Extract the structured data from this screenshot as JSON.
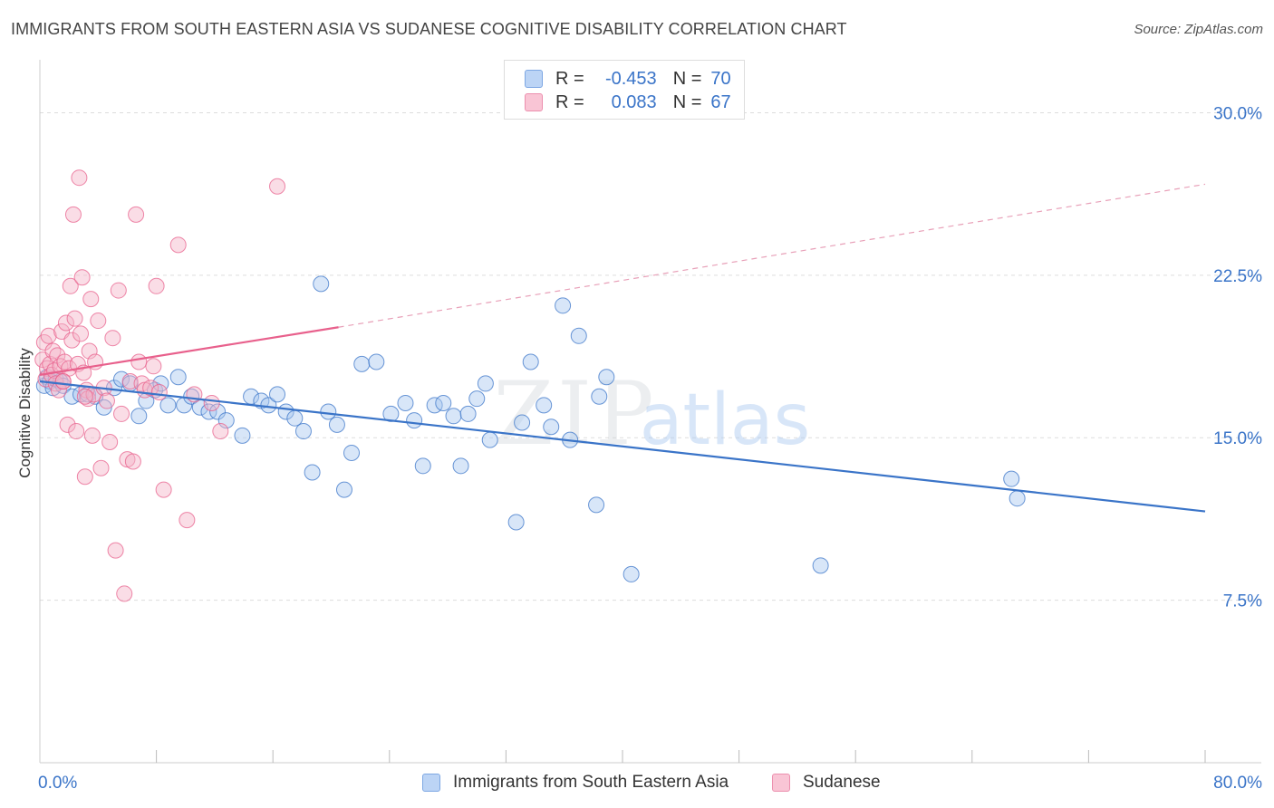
{
  "title": "IMMIGRANTS FROM SOUTH EASTERN ASIA VS SUDANESE COGNITIVE DISABILITY CORRELATION CHART",
  "source": "Source: ZipAtlas.com",
  "watermark": {
    "zip": "ZIP",
    "atlas": "atlas"
  },
  "colors": {
    "blue": "#3a74c8",
    "blue_fill": "#a9c7f0",
    "pink": "#e8608c",
    "pink_fill": "#f5b3c8",
    "grid": "#dddddd"
  },
  "legend": {
    "rows": [
      {
        "r_label": "R =",
        "r_value": "-0.453",
        "n_label": "N =",
        "n_value": "70"
      },
      {
        "r_label": "R =",
        "r_value": "0.083",
        "n_label": "N =",
        "n_value": "67"
      }
    ]
  },
  "bottom_legend": [
    "Immigrants from South Eastern Asia",
    "Sudanese"
  ],
  "chart_data": {
    "type": "scatter",
    "title": "IMMIGRANTS FROM SOUTH EASTERN ASIA VS SUDANESE COGNITIVE DISABILITY CORRELATION CHART",
    "xlabel": "",
    "ylabel": "Cognitive Disability",
    "xlim": [
      0,
      80
    ],
    "ylim": [
      0,
      32
    ],
    "x_tick_labels": [
      "0.0%",
      "80.0%"
    ],
    "y_tick_labels": [
      "30.0%",
      "22.5%",
      "15.0%",
      "7.5%"
    ],
    "y_ticks": [
      30.0,
      22.5,
      15.0,
      7.5
    ],
    "grid": true,
    "legend_position": "top-center",
    "series": [
      {
        "name": "Immigrants from South Eastern Asia",
        "color": "#3a74c8",
        "trend": {
          "x": [
            0,
            80
          ],
          "y": [
            17.6,
            11.6
          ],
          "style": "solid"
        },
        "points": [
          [
            0.3,
            17.4
          ],
          [
            0.5,
            17.8
          ],
          [
            0.7,
            17.6
          ],
          [
            0.9,
            17.3
          ],
          [
            1.1,
            17.7
          ],
          [
            1.4,
            17.6
          ],
          [
            1.6,
            17.4
          ],
          [
            2.2,
            16.9
          ],
          [
            2.8,
            17.0
          ],
          [
            3.3,
            17.0
          ],
          [
            3.8,
            16.9
          ],
          [
            4.4,
            16.4
          ],
          [
            5.1,
            17.3
          ],
          [
            5.6,
            17.7
          ],
          [
            6.2,
            17.5
          ],
          [
            6.8,
            16.0
          ],
          [
            7.3,
            16.7
          ],
          [
            7.9,
            17.2
          ],
          [
            8.3,
            17.5
          ],
          [
            8.8,
            16.5
          ],
          [
            9.5,
            17.8
          ],
          [
            9.9,
            16.5
          ],
          [
            10.4,
            16.9
          ],
          [
            11.0,
            16.4
          ],
          [
            11.6,
            16.2
          ],
          [
            12.2,
            16.2
          ],
          [
            12.8,
            15.8
          ],
          [
            13.9,
            15.1
          ],
          [
            14.5,
            16.9
          ],
          [
            15.2,
            16.7
          ],
          [
            15.7,
            16.5
          ],
          [
            16.3,
            17.0
          ],
          [
            16.9,
            16.2
          ],
          [
            17.5,
            15.9
          ],
          [
            18.1,
            15.3
          ],
          [
            18.7,
            13.4
          ],
          [
            19.3,
            22.1
          ],
          [
            19.8,
            16.2
          ],
          [
            20.4,
            15.6
          ],
          [
            20.9,
            12.6
          ],
          [
            21.4,
            14.3
          ],
          [
            22.1,
            18.4
          ],
          [
            23.1,
            18.5
          ],
          [
            24.1,
            16.1
          ],
          [
            25.1,
            16.6
          ],
          [
            25.7,
            15.8
          ],
          [
            26.3,
            13.7
          ],
          [
            27.1,
            16.5
          ],
          [
            27.7,
            16.6
          ],
          [
            28.4,
            16.0
          ],
          [
            28.9,
            13.7
          ],
          [
            29.4,
            16.1
          ],
          [
            30.0,
            16.8
          ],
          [
            30.6,
            17.5
          ],
          [
            30.9,
            14.9
          ],
          [
            32.7,
            11.1
          ],
          [
            33.1,
            15.7
          ],
          [
            33.7,
            18.5
          ],
          [
            34.6,
            16.5
          ],
          [
            35.1,
            15.5
          ],
          [
            35.9,
            21.1
          ],
          [
            36.4,
            14.9
          ],
          [
            37.0,
            19.7
          ],
          [
            38.2,
            11.9
          ],
          [
            38.4,
            16.9
          ],
          [
            38.9,
            17.8
          ],
          [
            40.6,
            8.7
          ],
          [
            53.6,
            9.1
          ],
          [
            66.7,
            13.1
          ],
          [
            67.1,
            12.2
          ]
        ]
      },
      {
        "name": "Sudanese",
        "color": "#e8608c",
        "trend": {
          "x": [
            0,
            20.5
          ],
          "y": [
            17.9,
            20.1
          ],
          "style": "solid"
        },
        "trend_extension": {
          "x": [
            20.5,
            80
          ],
          "y": [
            20.1,
            26.7
          ],
          "style": "dashed"
        },
        "points": [
          [
            0.2,
            18.6
          ],
          [
            0.3,
            19.4
          ],
          [
            0.4,
            17.7
          ],
          [
            0.5,
            18.2
          ],
          [
            0.6,
            19.7
          ],
          [
            0.7,
            18.4
          ],
          [
            0.8,
            17.9
          ],
          [
            0.9,
            19.0
          ],
          [
            1.0,
            18.1
          ],
          [
            1.1,
            17.5
          ],
          [
            1.2,
            18.8
          ],
          [
            1.3,
            17.2
          ],
          [
            1.4,
            18.3
          ],
          [
            1.5,
            19.9
          ],
          [
            1.6,
            17.6
          ],
          [
            1.7,
            18.5
          ],
          [
            1.8,
            20.3
          ],
          [
            1.9,
            15.6
          ],
          [
            2.0,
            18.2
          ],
          [
            2.1,
            22.0
          ],
          [
            2.2,
            19.5
          ],
          [
            2.3,
            25.3
          ],
          [
            2.4,
            20.5
          ],
          [
            2.5,
            15.3
          ],
          [
            2.6,
            18.4
          ],
          [
            2.7,
            27.0
          ],
          [
            2.8,
            19.8
          ],
          [
            2.9,
            22.4
          ],
          [
            3.0,
            18.0
          ],
          [
            3.1,
            13.2
          ],
          [
            3.2,
            17.2
          ],
          [
            3.3,
            16.8
          ],
          [
            3.4,
            19.0
          ],
          [
            3.5,
            21.4
          ],
          [
            3.6,
            15.1
          ],
          [
            3.7,
            17.0
          ],
          [
            3.8,
            18.5
          ],
          [
            4.0,
            20.4
          ],
          [
            4.2,
            13.6
          ],
          [
            4.4,
            17.3
          ],
          [
            4.6,
            16.7
          ],
          [
            4.8,
            14.8
          ],
          [
            5.0,
            19.6
          ],
          [
            5.2,
            9.8
          ],
          [
            5.4,
            21.8
          ],
          [
            5.6,
            16.1
          ],
          [
            5.8,
            7.8
          ],
          [
            6.0,
            14.0
          ],
          [
            6.2,
            17.6
          ],
          [
            6.4,
            13.9
          ],
          [
            6.6,
            25.3
          ],
          [
            6.8,
            18.5
          ],
          [
            7.0,
            17.5
          ],
          [
            7.2,
            17.2
          ],
          [
            7.6,
            17.3
          ],
          [
            7.8,
            18.3
          ],
          [
            8.0,
            22.0
          ],
          [
            8.2,
            17.1
          ],
          [
            8.5,
            12.6
          ],
          [
            9.5,
            23.9
          ],
          [
            10.1,
            11.2
          ],
          [
            10.6,
            17.0
          ],
          [
            11.8,
            16.6
          ],
          [
            12.4,
            15.3
          ],
          [
            16.3,
            26.6
          ],
          [
            3.1,
            16.9
          ],
          [
            1.6,
            17.6
          ]
        ]
      }
    ]
  }
}
